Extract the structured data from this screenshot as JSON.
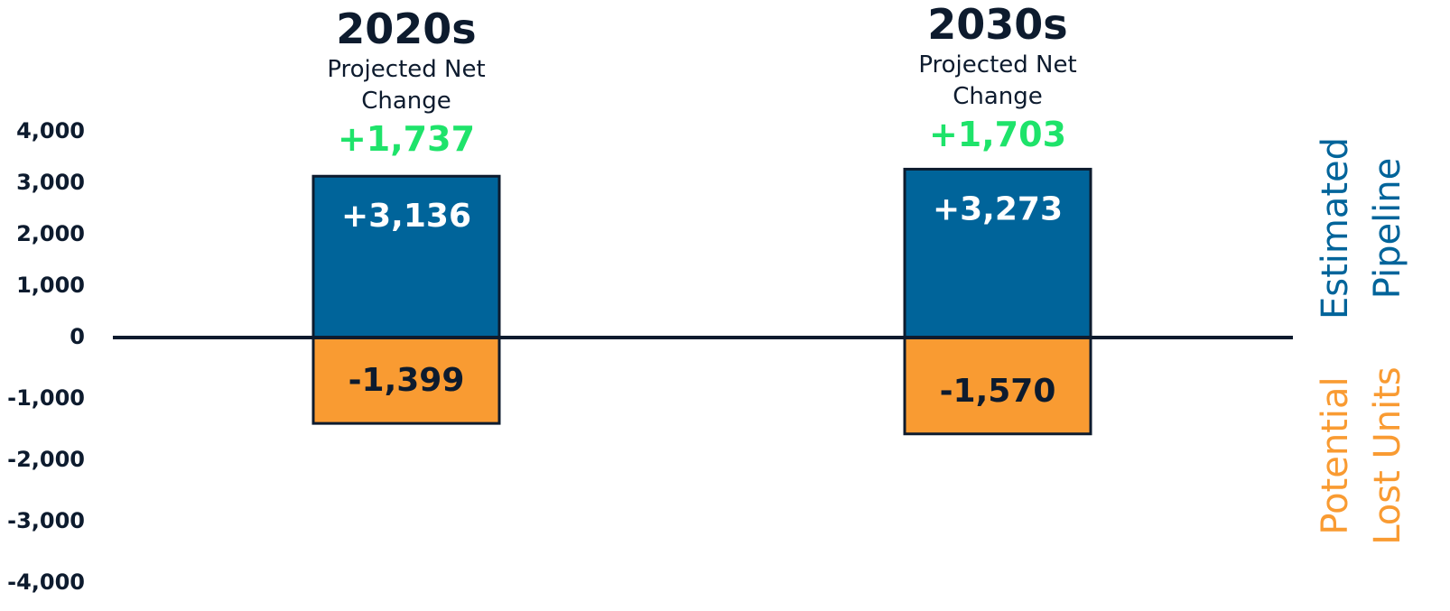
{
  "chart_data": {
    "type": "bar",
    "categories": [
      "2020s",
      "2030s"
    ],
    "net_label": "Projected Net Change",
    "net_values": [
      1737,
      1703
    ],
    "net_value_labels": [
      "+1,737",
      "+1,703"
    ],
    "net_color": "#1ee36a",
    "series": [
      {
        "name": "Estimated Pipeline",
        "color": "#00649a",
        "values": [
          3136,
          3273
        ],
        "value_labels": [
          "+3,136",
          "+3,273"
        ]
      },
      {
        "name": "Potential Lost Units",
        "color": "#f99b32",
        "values": [
          -1399,
          -1570
        ],
        "value_labels": [
          "-1,399",
          "-1,570"
        ]
      }
    ],
    "ylim": [
      -4000,
      4000
    ],
    "yticks": [
      {
        "value": 4000,
        "label": "4,000"
      },
      {
        "value": 3000,
        "label": "3,000"
      },
      {
        "value": 2000,
        "label": "2,000"
      },
      {
        "value": 1000,
        "label": "1,000"
      },
      0,
      {
        "value": -1000,
        "label": "-1,000"
      },
      {
        "value": -2000,
        "label": "-2,000"
      },
      {
        "value": -3000,
        "label": "-3,000"
      },
      {
        "value": -4000,
        "label": "-4,000"
      }
    ]
  }
}
